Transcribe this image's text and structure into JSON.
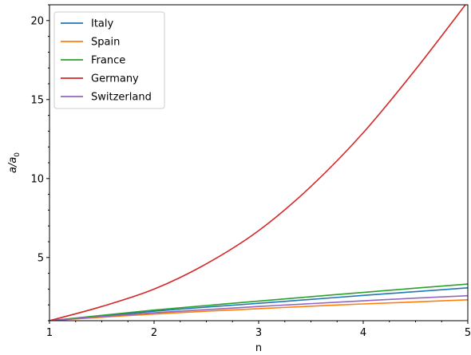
{
  "chart_data": {
    "type": "line",
    "title": "",
    "xlabel": "n",
    "ylabel_main": "a/a",
    "ylabel_sub": "0",
    "xlim": [
      1,
      5
    ],
    "ylim": [
      1,
      21
    ],
    "x_ticks": [
      1,
      2,
      3,
      4,
      5
    ],
    "y_ticks": [
      5,
      10,
      15,
      20
    ],
    "grid": false,
    "legend_position": "top-left",
    "x": [
      1,
      1.5,
      2,
      2.5,
      3,
      3.5,
      4,
      4.5,
      5
    ],
    "series": [
      {
        "name": "Italy",
        "color": "#1f77b4",
        "values": [
          1.0,
          1.3,
          1.6,
          1.86,
          2.1,
          2.35,
          2.6,
          2.84,
          3.08
        ]
      },
      {
        "name": "Spain",
        "color": "#ff7f0e",
        "values": [
          1.0,
          1.22,
          1.42,
          1.6,
          1.76,
          1.92,
          2.06,
          2.19,
          2.32
        ]
      },
      {
        "name": "France",
        "color": "#2ca02c",
        "values": [
          1.0,
          1.34,
          1.67,
          1.96,
          2.24,
          2.52,
          2.79,
          3.06,
          3.32
        ]
      },
      {
        "name": "Germany",
        "color": "#d62728",
        "values": [
          1.0,
          1.9,
          3.0,
          4.6,
          6.7,
          9.5,
          12.9,
          16.9,
          21.2
        ]
      },
      {
        "name": "Switzerland",
        "color": "#9467bd",
        "values": [
          1.0,
          1.26,
          1.5,
          1.7,
          1.9,
          2.08,
          2.26,
          2.43,
          2.58
        ]
      }
    ]
  }
}
